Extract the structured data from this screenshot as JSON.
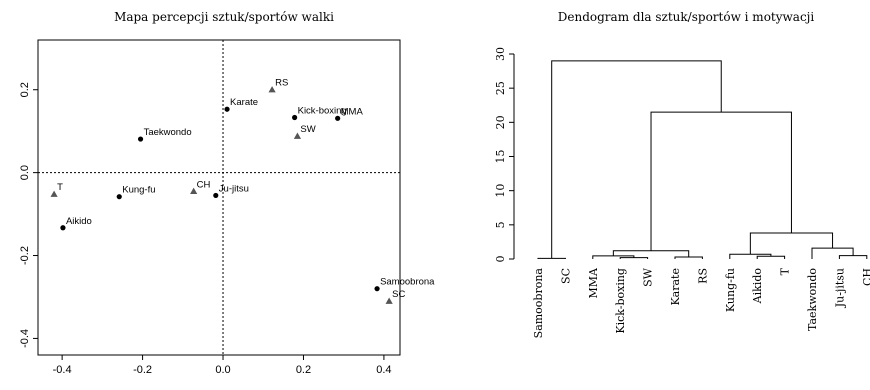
{
  "chart_data": [
    {
      "type": "scatter",
      "title": "Mapa percepcji sztuk/sportów walki",
      "xlim": [
        -0.46,
        0.44
      ],
      "ylim": [
        -0.44,
        0.32
      ],
      "xticks": [
        -0.4,
        -0.2,
        0.0,
        0.2,
        0.4
      ],
      "yticks": [
        -0.4,
        -0.2,
        0.0,
        0.2
      ],
      "xtick_labels": [
        "-0.4",
        "-0.2",
        "0.0",
        "0.2",
        "0.4"
      ],
      "ytick_labels": [
        "-0.4",
        "-0.2",
        "0.0",
        "0.2"
      ],
      "reference_lines": {
        "x": 0,
        "y": 0,
        "style": "dotted"
      },
      "points": [
        {
          "label": "Karate",
          "x": 0.01,
          "y": 0.153,
          "shape": "circle"
        },
        {
          "label": "Taekwondo",
          "x": -0.205,
          "y": 0.081,
          "shape": "circle"
        },
        {
          "label": "Kick-boxing",
          "x": 0.178,
          "y": 0.133,
          "shape": "circle"
        },
        {
          "label": "MMA",
          "x": 0.285,
          "y": 0.131,
          "shape": "circle"
        },
        {
          "label": "Kung-fu",
          "x": -0.258,
          "y": -0.058,
          "shape": "circle"
        },
        {
          "label": "Ju-jitsu",
          "x": -0.018,
          "y": -0.055,
          "shape": "circle"
        },
        {
          "label": "Aikido",
          "x": -0.398,
          "y": -0.133,
          "shape": "circle"
        },
        {
          "label": "Samoobrona",
          "x": 0.383,
          "y": -0.28,
          "shape": "circle"
        },
        {
          "label": "RS",
          "x": 0.122,
          "y": 0.2,
          "shape": "triangle"
        },
        {
          "label": "SW",
          "x": 0.185,
          "y": 0.088,
          "shape": "triangle"
        },
        {
          "label": "CH",
          "x": -0.073,
          "y": -0.045,
          "shape": "triangle"
        },
        {
          "label": "T",
          "x": -0.42,
          "y": -0.052,
          "shape": "triangle"
        },
        {
          "label": "SC",
          "x": 0.413,
          "y": -0.31,
          "shape": "triangle"
        }
      ],
      "colors": {
        "points": "#000000",
        "axes": "#000000"
      }
    },
    {
      "type": "dendrogram",
      "title": "Dendogram dla sztuk/sportów i motywacji",
      "ylim": [
        0,
        30
      ],
      "yticks": [
        0,
        5,
        10,
        15,
        20,
        25,
        30
      ],
      "ytick_labels": [
        "0",
        "5",
        "10",
        "15",
        "20",
        "25",
        "30"
      ],
      "leaves": [
        "Samoobrona",
        "SC",
        "MMA",
        "Kick-boxing",
        "SW",
        "Karate",
        "RS",
        "Kung-fu",
        "Aikido",
        "T",
        "Taekwondo",
        "Ju-jitsu",
        "CH"
      ],
      "merges": [
        {
          "left": "L:Kick-boxing",
          "right": "L:SW",
          "height": 0.2,
          "id": "m1"
        },
        {
          "left": "L:Samoobrona",
          "right": "L:SC",
          "height": 0.1,
          "id": "m2"
        },
        {
          "left": "L:Karate",
          "right": "L:RS",
          "height": 0.3,
          "id": "m3"
        },
        {
          "left": "L:Aikido",
          "right": "L:T",
          "height": 0.4,
          "id": "m4"
        },
        {
          "left": "L:Ju-jitsu",
          "right": "L:CH",
          "height": 0.5,
          "id": "m5"
        },
        {
          "left": "L:MMA",
          "right": "N:m1",
          "height": 0.45,
          "id": "m6"
        },
        {
          "left": "L:Kung-fu",
          "right": "N:m4",
          "height": 0.7,
          "id": "m7"
        },
        {
          "left": "N:m6",
          "right": "N:m3",
          "height": 1.2,
          "id": "m8"
        },
        {
          "left": "L:Taekwondo",
          "right": "N:m5",
          "height": 1.6,
          "id": "m9"
        },
        {
          "left": "N:m7",
          "right": "N:m9",
          "height": 3.8,
          "id": "m10"
        },
        {
          "left": "N:m8",
          "right": "N:m10",
          "height": 21.5,
          "id": "m11"
        },
        {
          "left": "N:m2",
          "right": "N:m11",
          "height": 29.0,
          "id": "m12"
        }
      ]
    }
  ]
}
